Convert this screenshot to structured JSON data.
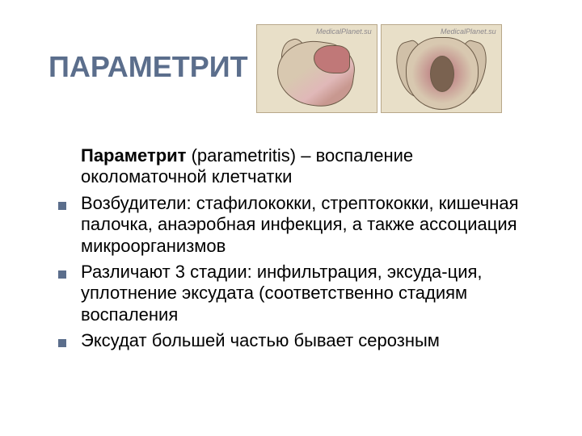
{
  "title": "ПАРАМЕТРИТ",
  "images": {
    "watermark": "MedicalPlanet.su",
    "bg_color": "#e8dfc8",
    "border_color": "#b8a88a"
  },
  "intro": {
    "term": "Параметрит",
    "rest": " (parametritis) – воспаление околоматочной клетчатки"
  },
  "bullets": [
    "Возбудители: стафилококки, стрептококки, кишечная палочка, анаэробная инфекция, а также ассоциация микроорганизмов",
    "Различают 3 стадии: инфильтрация, эксуда-ция, уплотнение эксудата (соответственно стадиям воспаления",
    "Эксудат большей частью бывает серозным"
  ],
  "colors": {
    "title": "#5b6e8c",
    "bullet": "#5b6e8c",
    "text": "#000000",
    "background": "#ffffff"
  },
  "typography": {
    "title_fontsize": 36,
    "body_fontsize": 22,
    "font_family": "Arial"
  }
}
